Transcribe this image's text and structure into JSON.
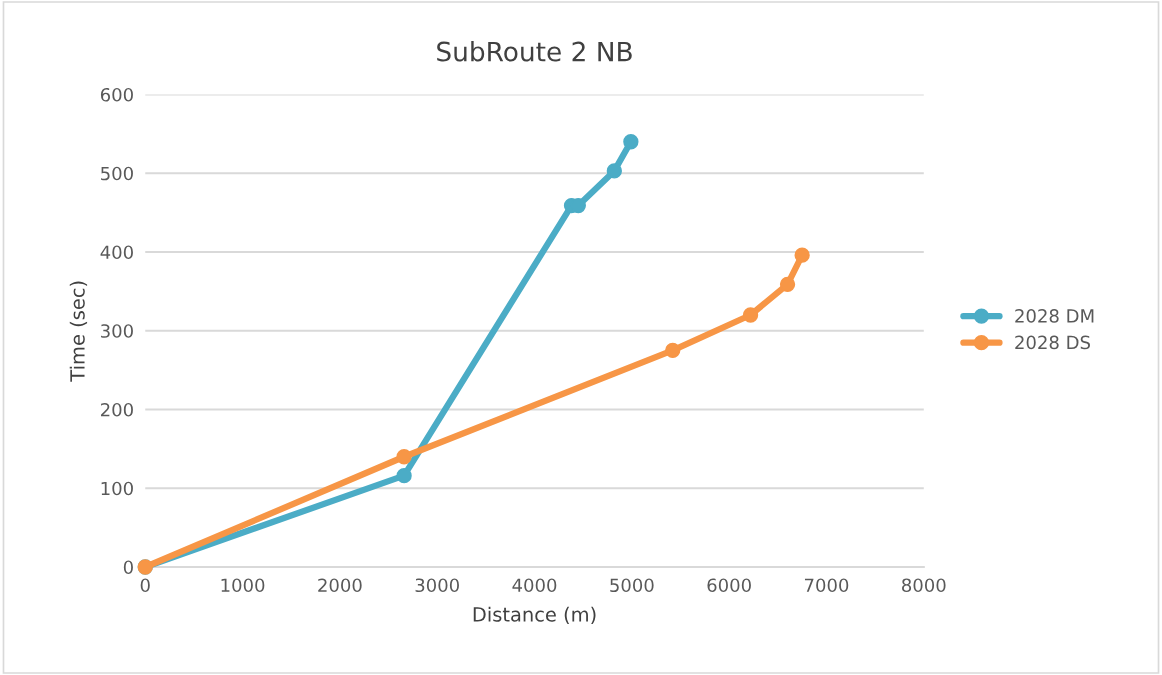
{
  "chart_data": {
    "type": "line",
    "title": "SubRoute 2 NB",
    "xlabel": "Distance (m)",
    "ylabel": "Time (sec)",
    "xlim": [
      0,
      8000
    ],
    "xticks": [
      0,
      1000,
      2000,
      3000,
      4000,
      5000,
      6000,
      7000,
      8000
    ],
    "ylim": [
      0,
      600
    ],
    "yticks": [
      0,
      100,
      200,
      300,
      400,
      500,
      600
    ],
    "grid": "y",
    "legend": "right",
    "marker": "circle",
    "line_style": "solid",
    "series": [
      {
        "name": "2028 DM",
        "color": "#4bacc6",
        "x": [
          0,
          2660,
          4380,
          4450,
          4820,
          4990
        ],
        "values": [
          0,
          116,
          459,
          459,
          503,
          540
        ]
      },
      {
        "name": "2028 DS",
        "color": "#f79646",
        "x": [
          0,
          2660,
          5420,
          6220,
          6600,
          6750
        ],
        "values": [
          0,
          140,
          275,
          320,
          359,
          396
        ]
      }
    ]
  }
}
